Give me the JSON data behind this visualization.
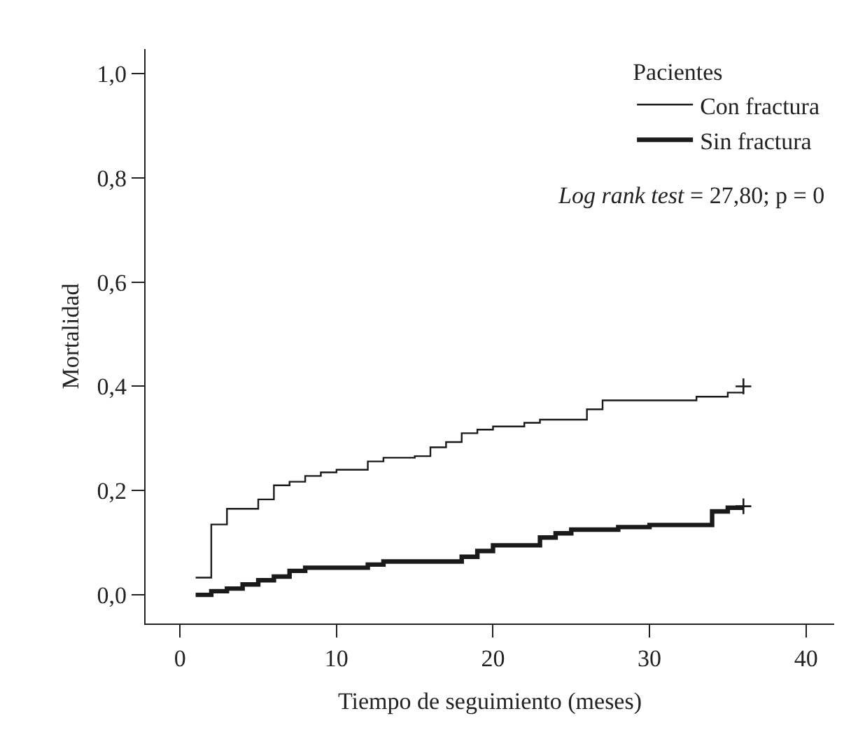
{
  "chart_data": {
    "type": "step",
    "xlabel": "Tiempo de seguimiento (meses)",
    "ylabel": "Mortalidad",
    "legend_title": "Pacientes",
    "legend": "top right",
    "line_style": "solid",
    "xlim": [
      -2.2,
      41.8
    ],
    "xticks": [
      0,
      10,
      20,
      30,
      40
    ],
    "ylim": [
      -0.055,
      1.047
    ],
    "yticks": [
      {
        "value": 0,
        "label": "0,0"
      },
      {
        "value": 0.2,
        "label": "0,2"
      },
      {
        "value": 0.4,
        "label": "0,4"
      },
      {
        "value": 0.6,
        "label": "0,6"
      },
      {
        "value": 0.8,
        "label": "0,8"
      },
      {
        "value": 1,
        "label": "1,0"
      }
    ],
    "annotations": [
      "Log rank test = 27,80; p = 0"
    ],
    "series": [
      {
        "name": "Con fractura",
        "color": "#1a1a1a",
        "x": [
          1,
          2,
          3,
          5,
          6,
          7,
          8,
          9,
          10,
          12,
          13,
          15,
          16,
          17,
          18,
          19,
          20,
          22,
          23,
          26,
          27,
          33,
          35,
          36
        ],
        "values": [
          0.033,
          0.135,
          0.165,
          0.183,
          0.21,
          0.217,
          0.228,
          0.235,
          0.24,
          0.256,
          0.263,
          0.266,
          0.283,
          0.293,
          0.31,
          0.317,
          0.323,
          0.33,
          0.336,
          0.356,
          0.373,
          0.38,
          0.388,
          0.388
        ]
      },
      {
        "name": "Sin fractura",
        "color": "#1a1a1a",
        "x": [
          1,
          2,
          3,
          4,
          5,
          6,
          7,
          8,
          12,
          13,
          18,
          19,
          20,
          23,
          24,
          25,
          28,
          30,
          34,
          35,
          36
        ],
        "values": [
          0,
          0.007,
          0.012,
          0.02,
          0.028,
          0.035,
          0.046,
          0.052,
          0.058,
          0.064,
          0.073,
          0.084,
          0.095,
          0.11,
          0.118,
          0.125,
          0.13,
          0.134,
          0.16,
          0.167,
          0.167
        ]
      },
      {
        "type": "scatter",
        "marker": "cross",
        "color": "#1a1a1a",
        "x": [
          36
        ],
        "values": [
          0.4
        ]
      },
      {
        "type": "scatter",
        "marker": "cross",
        "color": "#1a1a1a",
        "x": [
          36
        ],
        "values": [
          0.17
        ]
      }
    ]
  }
}
